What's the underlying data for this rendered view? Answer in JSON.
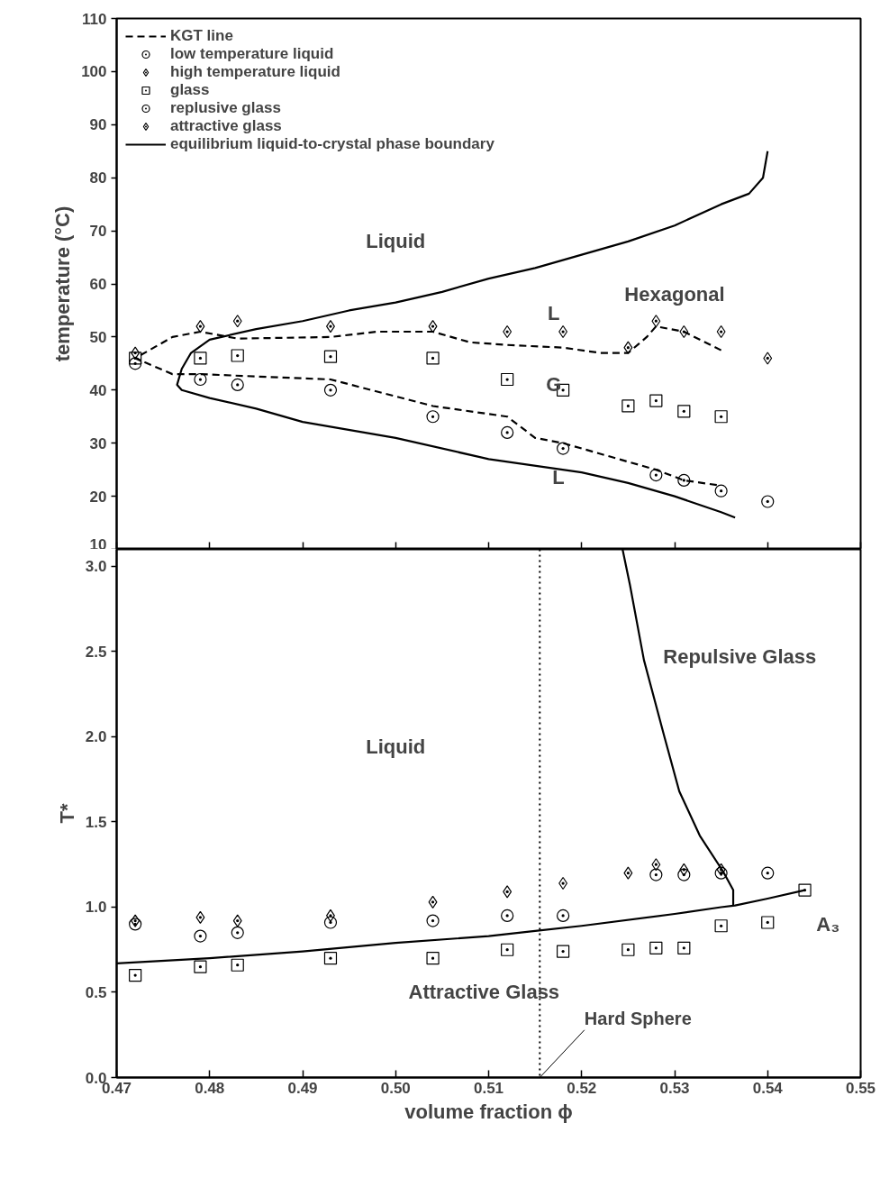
{
  "chart_data": [
    {
      "type": "scatter",
      "ylabel": "temperature (°C)",
      "xlim": [
        0.47,
        0.55
      ],
      "ylim": [
        10,
        110
      ],
      "xticks": [
        0.47,
        0.48,
        0.49,
        0.5,
        0.51,
        0.52,
        0.53,
        0.54,
        0.55
      ],
      "yticks": [
        10,
        20,
        30,
        40,
        50,
        60,
        70,
        80,
        90,
        100,
        110
      ],
      "tick_labels": "y",
      "legend": "top left",
      "grid": false,
      "series": [
        {
          "name": "KGT line",
          "type": "line",
          "line_style": "dashed",
          "color": "#000000",
          "x": [
            0.535,
            0.531,
            0.528,
            0.527,
            0.525,
            0.522,
            0.518,
            0.512,
            0.508,
            0.504,
            0.498,
            0.493,
            0.483,
            0.479,
            0.476,
            0.472,
            0.476,
            0.479,
            0.493,
            0.504,
            0.512,
            0.515,
            0.518,
            0.528,
            0.531,
            0.535
          ],
          "values": [
            47.5,
            51,
            52,
            50,
            47,
            47,
            48,
            48.5,
            49,
            51,
            51,
            50,
            49.7,
            51,
            50,
            46,
            43,
            43,
            42,
            37,
            35,
            31,
            30,
            25,
            23,
            22
          ]
        },
        {
          "name": "low temperature liquid",
          "marker": "circle",
          "color": "#000000",
          "x": [
            0.472,
            0.479,
            0.483,
            0.493,
            0.504,
            0.512,
            0.518,
            0.528,
            0.531,
            0.535
          ],
          "values": [
            45,
            42,
            41,
            40,
            35,
            32,
            29,
            24,
            23,
            21
          ]
        },
        {
          "name": "high temperature liquid",
          "marker": "diamond",
          "color": "#000000",
          "x": [
            0.472,
            0.479,
            0.483,
            0.493,
            0.504,
            0.512,
            0.518,
            0.525,
            0.528,
            0.531,
            0.535
          ],
          "values": [
            47,
            52,
            53,
            52,
            52,
            51,
            51,
            48,
            53,
            51,
            51
          ]
        },
        {
          "name": "glass",
          "marker": "square",
          "color": "#000000",
          "x": [
            0.472,
            0.479,
            0.483,
            0.493,
            0.504,
            0.512,
            0.518,
            0.525,
            0.528,
            0.531,
            0.535
          ],
          "values": [
            46,
            46,
            46.5,
            46.3,
            46,
            42,
            40,
            37,
            38,
            36,
            35
          ]
        },
        {
          "name": "replusive glass",
          "marker": "circle",
          "color": "#000000",
          "x": [
            0.54
          ],
          "values": [
            19
          ]
        },
        {
          "name": "attractive glass",
          "marker": "diamond",
          "color": "#000000",
          "x": [
            0.54
          ],
          "values": [
            46
          ]
        },
        {
          "name": "equilibrium liquid-to-crystal phase boundary",
          "type": "line",
          "line_style": "solid",
          "color": "#000000",
          "x": [
            0.54,
            0.5395,
            0.538,
            0.535,
            0.53,
            0.525,
            0.52,
            0.515,
            0.51,
            0.505,
            0.5,
            0.495,
            0.49,
            0.485,
            0.48,
            0.478,
            0.477,
            0.4765,
            0.477,
            0.48,
            0.485,
            0.49,
            0.5,
            0.51,
            0.52,
            0.525,
            0.53,
            0.535,
            0.5365
          ],
          "values": [
            85,
            80,
            77,
            75,
            71,
            68,
            65.5,
            63,
            61,
            58.5,
            56.5,
            55,
            53,
            51.5,
            49.5,
            47,
            44,
            41,
            40,
            38.5,
            36.5,
            34,
            31,
            27,
            24.5,
            22.5,
            20,
            17,
            16
          ]
        }
      ],
      "annotations": [
        "Liquid",
        "Hexagonal",
        "L",
        "G",
        "L"
      ]
    },
    {
      "type": "scatter",
      "xlabel": "volume fraction ϕ",
      "ylabel": "T*",
      "xlim": [
        0.47,
        0.55
      ],
      "ylim": [
        0,
        3.1
      ],
      "xticks": [
        0.47,
        0.48,
        0.49,
        {
          "value": 0.5,
          "label": "0.50"
        },
        0.51,
        0.52,
        0.53,
        0.54,
        0.55
      ],
      "yticks": [
        {
          "value": 0,
          "label": "0.0"
        },
        {
          "value": 0.5,
          "label": "0.5"
        },
        {
          "value": 1,
          "label": "1.0"
        },
        {
          "value": 1.5,
          "label": "1.5"
        },
        {
          "value": 2,
          "label": "2.0"
        },
        {
          "value": 2.5,
          "label": "2.5"
        },
        {
          "value": 3,
          "label": "3.0"
        }
      ],
      "legend": false,
      "grid": false,
      "series": [
        {
          "marker": "diamond",
          "color": "#000000",
          "x": [
            0.472,
            0.479,
            0.483,
            0.493,
            0.504,
            0.512,
            0.518,
            0.525,
            0.528,
            0.531,
            0.535
          ],
          "values": [
            0.92,
            0.94,
            0.92,
            0.95,
            1.03,
            1.09,
            1.14,
            1.2,
            1.25,
            1.22,
            1.22
          ]
        },
        {
          "marker": "circle",
          "color": "#000000",
          "x": [
            0.472,
            0.479,
            0.483,
            0.493,
            0.504,
            0.512,
            0.518,
            0.528,
            0.531,
            0.535,
            0.54
          ],
          "values": [
            0.9,
            0.83,
            0.85,
            0.91,
            0.92,
            0.95,
            0.95,
            1.19,
            1.19,
            1.2,
            1.2
          ]
        },
        {
          "marker": "square",
          "color": "#000000",
          "x": [
            0.472,
            0.479,
            0.483,
            0.493,
            0.504,
            0.512,
            0.518,
            0.525,
            0.528,
            0.531,
            0.535,
            0.54,
            0.544
          ],
          "values": [
            0.6,
            0.65,
            0.66,
            0.7,
            0.7,
            0.75,
            0.74,
            0.75,
            0.76,
            0.76,
            0.89,
            0.91,
            1.1
          ]
        },
        {
          "type": "line",
          "line_style": "solid",
          "color": "#000000",
          "x": [
            0.47,
            0.48,
            0.49,
            0.5,
            0.51,
            0.515,
            0.52,
            0.53,
            0.535,
            0.5365,
            0.54,
            0.544
          ],
          "values": [
            0.67,
            0.7,
            0.74,
            0.79,
            0.83,
            0.86,
            0.89,
            0.96,
            1.0,
            1.01,
            1.05,
            1.1
          ]
        },
        {
          "type": "line",
          "line_style": "solid",
          "color": "#000000",
          "x": [
            0.5363,
            0.5363,
            0.5352,
            0.5327,
            0.5305,
            0.5289,
            0.5267,
            0.5252,
            0.5244
          ],
          "values": [
            1.01,
            1.1,
            1.21,
            1.42,
            1.68,
            2.0,
            2.45,
            2.89,
            3.1
          ]
        }
      ],
      "ref_lines": [
        {
          "axis": "x",
          "value": 0.5155,
          "label": "Hard Sphere",
          "line_style": "dotted"
        }
      ],
      "annotations": [
        "Liquid",
        "Repulsive Glass",
        "Attractive Glass",
        "A₃"
      ]
    }
  ]
}
